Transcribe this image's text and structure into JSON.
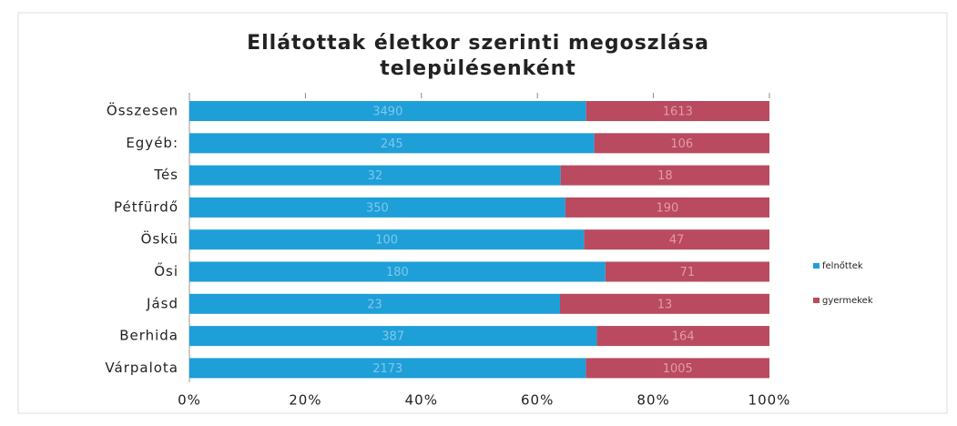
{
  "chart_data": {
    "type": "stacked-bar-100",
    "title": [
      "Ellátottak életkor szerinti megoszlása",
      "településenként"
    ],
    "categories": [
      "Összesen",
      "Egyéb:",
      "Tés",
      "Pétfürdő",
      "Öskü",
      "Ősi",
      "Jásd",
      "Berhida",
      "Várpalota"
    ],
    "series": [
      {
        "name": "felnőttek",
        "color": "#1e9fd8",
        "values": [
          3490,
          245,
          32,
          350,
          100,
          180,
          23,
          387,
          2173
        ]
      },
      {
        "name": "gyermekek",
        "color": "#b94a5f",
        "values": [
          1613,
          106,
          18,
          190,
          47,
          71,
          13,
          164,
          1005
        ]
      }
    ],
    "xlim": [
      0,
      100
    ],
    "xticks": [
      {
        "value": 0,
        "label": "0%"
      },
      {
        "value": 20,
        "label": "20%"
      },
      {
        "value": 40,
        "label": "40%"
      },
      {
        "value": 60,
        "label": "60%"
      },
      {
        "value": 80,
        "label": "80%"
      },
      {
        "value": 100,
        "label": "100%"
      }
    ],
    "legend": "right"
  }
}
